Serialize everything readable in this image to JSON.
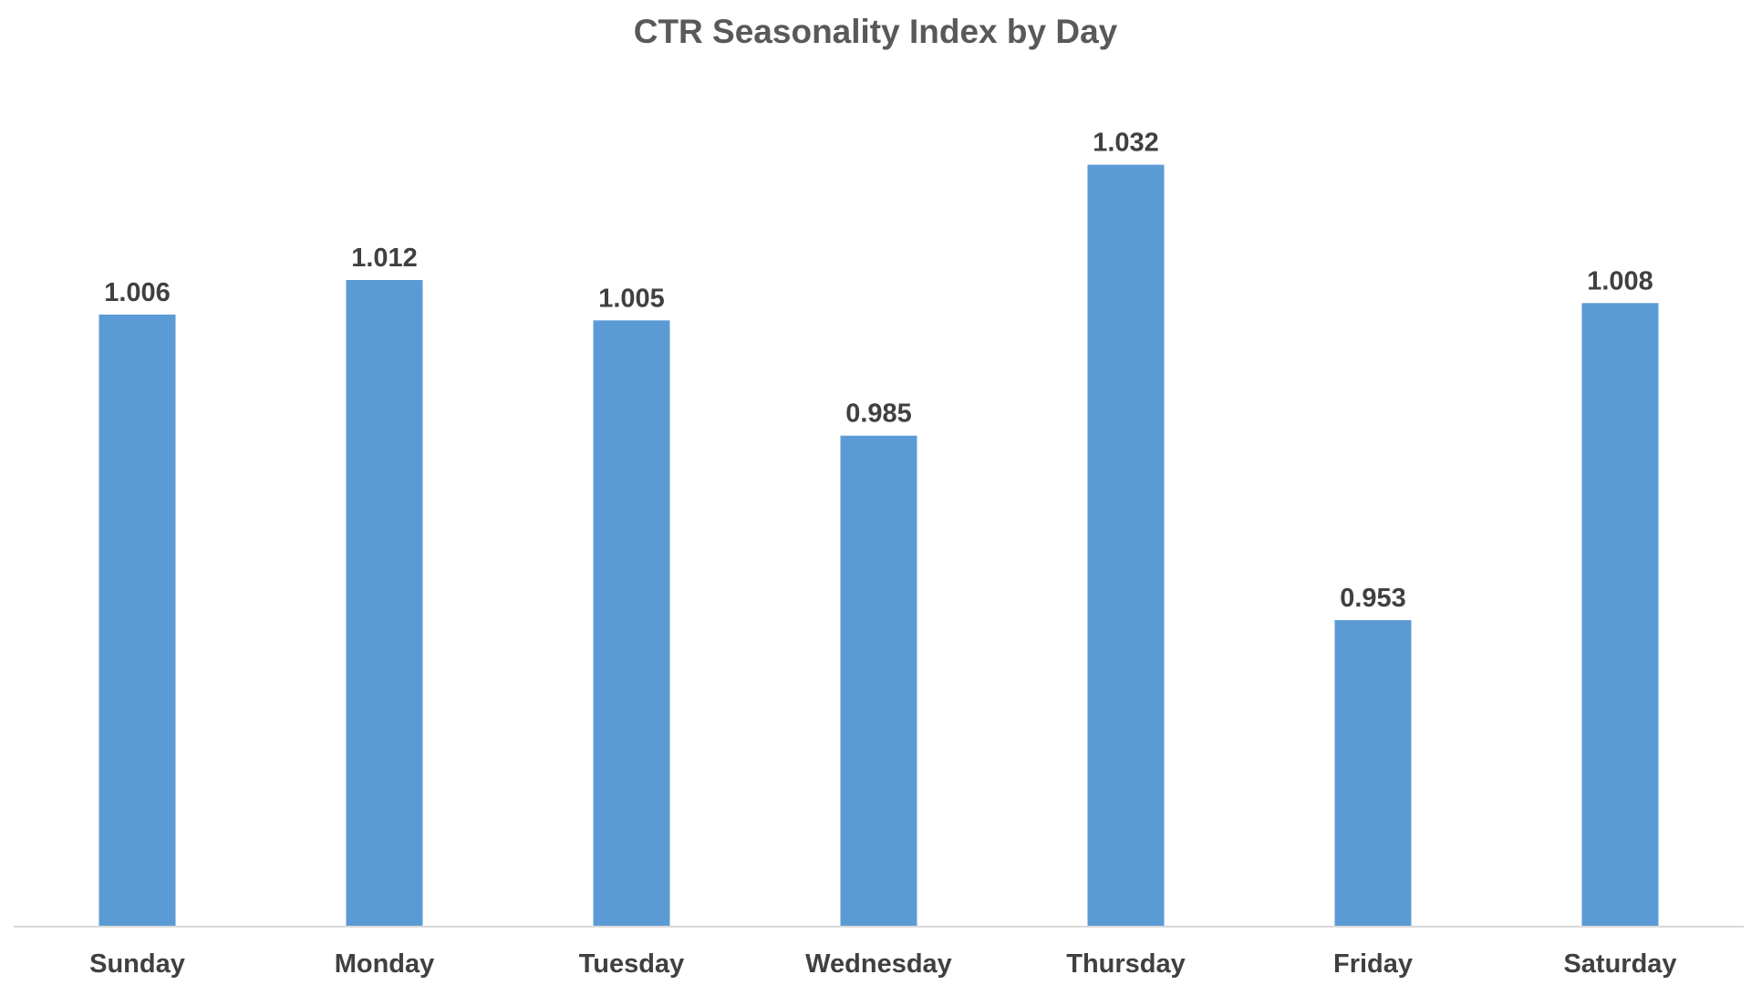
{
  "chart_data": {
    "type": "bar",
    "title": "CTR Seasonality Index by Day",
    "xlabel": "",
    "ylabel": "",
    "categories": [
      "Sunday",
      "Monday",
      "Tuesday",
      "Wednesday",
      "Thursday",
      "Friday",
      "Saturday"
    ],
    "values": [
      1.006,
      1.012,
      1.005,
      0.985,
      1.032,
      0.953,
      1.008
    ],
    "data_labels": [
      "1.006",
      "1.012",
      "1.005",
      "0.985",
      "1.032",
      "0.953",
      "1.008"
    ],
    "ylim": [
      0.9,
      1.04
    ],
    "grid": false,
    "legend": "none",
    "y_axis_visible": false
  },
  "colors": {
    "bar": "#5b9bd5",
    "axis_line": "#d9d9d9",
    "title_text": "#595959",
    "label_text": "#404040",
    "background": "#ffffff"
  }
}
